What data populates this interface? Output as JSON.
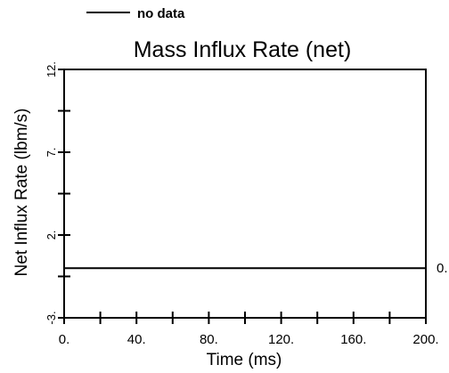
{
  "chart_data": {
    "type": "line",
    "title": "Mass Influx Rate (net)",
    "xlabel": "Time (ms)",
    "ylabel": "Net Influx Rate (lbm/s)",
    "xlim": [
      0,
      200
    ],
    "ylim": [
      -3,
      12
    ],
    "x_ticks": [
      0,
      40,
      80,
      120,
      160,
      200
    ],
    "x_tick_labels": [
      "0.",
      "40.",
      "80.",
      "120.",
      "160.",
      "200."
    ],
    "y_ticks": [
      -3,
      2,
      7,
      12
    ],
    "y_tick_labels": [
      "-3.",
      "2.",
      "7.",
      "12."
    ],
    "legend": {
      "placement": "top-left",
      "label": "no data"
    },
    "series": [
      {
        "x": [
          0,
          200
        ],
        "y": [
          0,
          0
        ],
        "end_label": "0."
      }
    ],
    "grid": false
  }
}
